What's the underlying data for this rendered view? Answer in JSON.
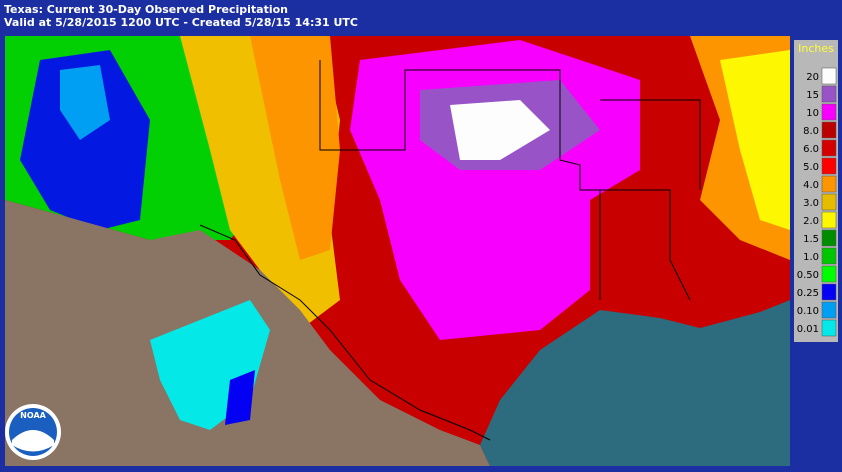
{
  "header": {
    "title": "Texas: Current 30-Day Observed Precipitation",
    "subtitle": "Valid at 5/28/2015 1200 UTC - Created 5/28/15 14:31 UTC"
  },
  "legend": {
    "title": "Inches",
    "items": [
      {
        "label": "20",
        "color": "#fdfdfd"
      },
      {
        "label": "15",
        "color": "#9854c6"
      },
      {
        "label": "10",
        "color": "#f800fd"
      },
      {
        "label": "8.0",
        "color": "#bc0000"
      },
      {
        "label": "6.0",
        "color": "#d40000"
      },
      {
        "label": "5.0",
        "color": "#fd0000"
      },
      {
        "label": "4.0",
        "color": "#fd9500"
      },
      {
        "label": "3.0",
        "color": "#e5bc00"
      },
      {
        "label": "2.0",
        "color": "#fdf802"
      },
      {
        "label": "1.5",
        "color": "#008e00"
      },
      {
        "label": "1.0",
        "color": "#01c501"
      },
      {
        "label": "0.50",
        "color": "#02fd02"
      },
      {
        "label": "0.25",
        "color": "#0300f4"
      },
      {
        "label": "0.10",
        "color": "#019ff4"
      },
      {
        "label": "0.01",
        "color": "#04e9e7"
      }
    ]
  },
  "logo": {
    "text": "NOAA"
  }
}
